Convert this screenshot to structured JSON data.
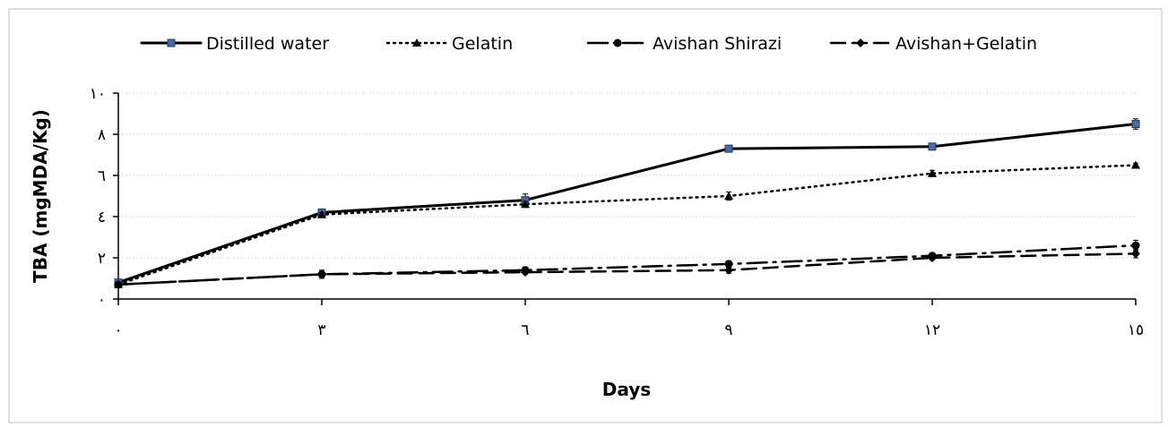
{
  "chart_data": {
    "type": "line",
    "title": "",
    "xlabel": "Days",
    "ylabel": "TBA (mgMDA/Kg)",
    "x": [
      0,
      3,
      6,
      9,
      12,
      15
    ],
    "x_tick_labels": [
      "٠",
      "٣",
      "٦",
      "٩",
      "١٢",
      "١٥"
    ],
    "y_ticks": [
      0,
      2,
      4,
      6,
      8,
      10
    ],
    "y_tick_labels": [
      "٠",
      "٢",
      "٤",
      "٦",
      "٨",
      "١٠"
    ],
    "ylim": [
      0,
      10
    ],
    "grid": true,
    "legend_position": "top",
    "series": [
      {
        "name": "Distilled water",
        "values": [
          0.8,
          4.2,
          4.8,
          7.3,
          7.4,
          8.5
        ],
        "errors": [
          0.1,
          0.15,
          0.3,
          0.1,
          0.1,
          0.25
        ],
        "marker": "square",
        "dash": "solid",
        "color": "#000000",
        "marker_fill": "#4a6aa5"
      },
      {
        "name": "Gelatin",
        "values": [
          0.7,
          4.1,
          4.6,
          5.0,
          6.1,
          6.5
        ],
        "errors": [
          0.05,
          0.1,
          0.15,
          0.2,
          0.15,
          0.1
        ],
        "marker": "triangle",
        "dash": "dotted",
        "color": "#000000",
        "marker_fill": "#000000"
      },
      {
        "name": "Avishan Shirazi",
        "values": [
          0.7,
          1.2,
          1.4,
          1.7,
          2.1,
          2.6
        ],
        "errors": [
          0.05,
          0.2,
          0.15,
          0.15,
          0.1,
          0.25
        ],
        "marker": "circle",
        "dash": "dashdot",
        "color": "#000000",
        "marker_fill": "#000000"
      },
      {
        "name": "Avishan+Gelatin",
        "values": [
          0.7,
          1.2,
          1.3,
          1.4,
          2.0,
          2.2
        ],
        "errors": [
          0.05,
          0.1,
          0.1,
          0.15,
          0.1,
          0.2
        ],
        "marker": "diamond",
        "dash": "dashed",
        "color": "#000000",
        "marker_fill": "#000000"
      }
    ]
  }
}
